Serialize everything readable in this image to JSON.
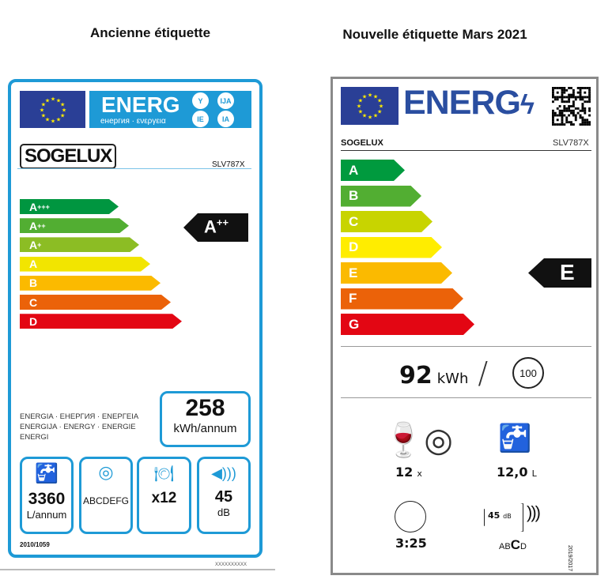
{
  "titles": {
    "old": "Ancienne étiquette",
    "new": "Nouvelle étiquette Mars 2021"
  },
  "colors": {
    "old_border": "#1e9ad6",
    "eu_blue": "#2a3f96",
    "new_border": "#8a8a8a"
  },
  "old": {
    "energ": "ENERG",
    "energ_sub": "енергия · ενεργεια",
    "lang_badges": [
      "Y",
      "IJA",
      "IE",
      "IA"
    ],
    "brand": "SOGELUX",
    "model": "SLV787X",
    "classes": [
      {
        "label": "A",
        "sup": "+++",
        "color": "#009640"
      },
      {
        "label": "A",
        "sup": "++",
        "color": "#52ae32"
      },
      {
        "label": "A",
        "sup": "+",
        "color": "#8cbd24"
      },
      {
        "label": "A",
        "sup": "",
        "color": "#f2e500"
      },
      {
        "label": "B",
        "sup": "",
        "color": "#fbba00"
      },
      {
        "label": "C",
        "sup": "",
        "color": "#eb6209"
      },
      {
        "label": "D",
        "sup": "",
        "color": "#e30613"
      }
    ],
    "rating": {
      "label": "A",
      "sup": "++"
    },
    "energy_words": [
      "ENERGIA · ЕНЕРГИЯ · ΕΝΕΡΓΕΙΑ",
      "ENERGIJA · ENERGY · ENERGIE",
      "ENERGI"
    ],
    "consumption": "258",
    "consumption_unit": "kWh/annum",
    "water": "3360",
    "water_unit": "L/annum",
    "drying": "ABCDEFG",
    "capacity": "x12",
    "noise": "45",
    "noise_unit": "dB",
    "regulation": "2010/1059",
    "code": "XXXXXXXXXX"
  },
  "new": {
    "energ": "ENERG",
    "brand": "SOGELUX",
    "model": "SLV787X",
    "classes": [
      {
        "label": "A",
        "color": "#009a3e"
      },
      {
        "label": "B",
        "color": "#52ae32"
      },
      {
        "label": "C",
        "color": "#c8d400"
      },
      {
        "label": "D",
        "color": "#ffed00"
      },
      {
        "label": "E",
        "color": "#fbba00"
      },
      {
        "label": "F",
        "color": "#eb6209"
      },
      {
        "label": "G",
        "color": "#e30613"
      }
    ],
    "rating": "E",
    "consumption": "92",
    "consumption_unit": "kWh",
    "cycles": "100",
    "capacity": "12",
    "capacity_unit": "x",
    "water": "12,0",
    "water_unit": "L",
    "duration": "3:25",
    "noise": "45",
    "noise_unit": "dB",
    "noise_classes": [
      "A",
      "B",
      "C",
      "D"
    ],
    "regulation": "2019/2017"
  }
}
